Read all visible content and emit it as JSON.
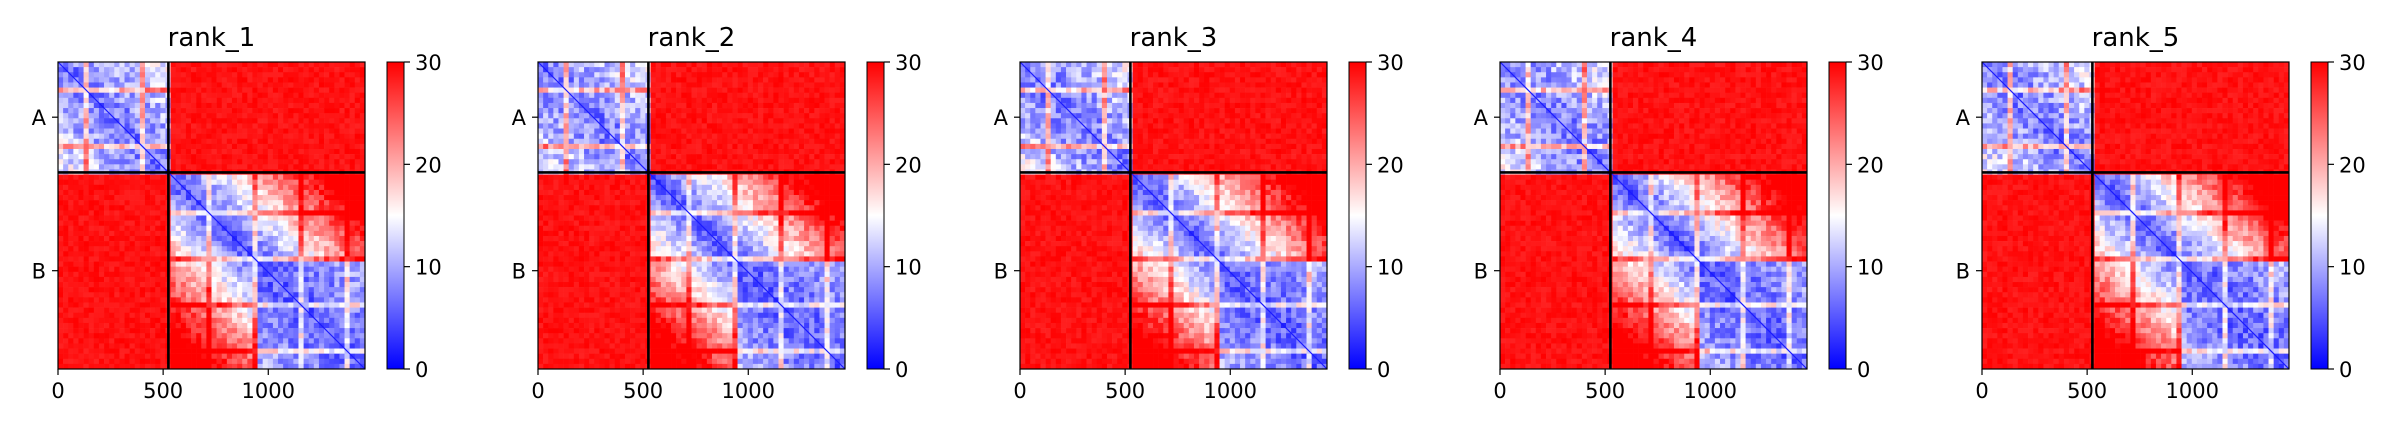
{
  "chart_data": [
    {
      "type": "heatmap",
      "title": "rank_1",
      "x_ticks": [
        0,
        500,
        1000
      ],
      "x_tick_labels": [
        "0",
        "500",
        "1000"
      ],
      "y_tick_labels": [
        "A",
        "B"
      ],
      "matrix_size": 1460,
      "chain_boundary": 525,
      "chains": [
        "A",
        "B"
      ],
      "colormap": "bwr",
      "vmin": 0,
      "vmax": 30,
      "colorbar_ticks": [
        0,
        10,
        20,
        30
      ],
      "colorbar_tick_labels": [
        "0",
        "10",
        "20",
        "30"
      ],
      "block_values": {
        "A-A": "low (blue)",
        "A-B": 30,
        "B-A": 30,
        "B-B": "mixed, low near diagonal"
      }
    },
    {
      "type": "heatmap",
      "title": "rank_2",
      "x_ticks": [
        0,
        500,
        1000
      ],
      "x_tick_labels": [
        "0",
        "500",
        "1000"
      ],
      "y_tick_labels": [
        "A",
        "B"
      ],
      "matrix_size": 1460,
      "chain_boundary": 525,
      "chains": [
        "A",
        "B"
      ],
      "colormap": "bwr",
      "vmin": 0,
      "vmax": 30,
      "colorbar_ticks": [
        0,
        10,
        20,
        30
      ],
      "colorbar_tick_labels": [
        "0",
        "10",
        "20",
        "30"
      ],
      "block_values": {
        "A-A": "low (blue)",
        "A-B": 30,
        "B-A": 30,
        "B-B": "mixed, low near diagonal"
      }
    },
    {
      "type": "heatmap",
      "title": "rank_3",
      "x_ticks": [
        0,
        500,
        1000
      ],
      "x_tick_labels": [
        "0",
        "500",
        "1000"
      ],
      "y_tick_labels": [
        "A",
        "B"
      ],
      "matrix_size": 1460,
      "chain_boundary": 525,
      "chains": [
        "A",
        "B"
      ],
      "colormap": "bwr",
      "vmin": 0,
      "vmax": 30,
      "colorbar_ticks": [
        0,
        10,
        20,
        30
      ],
      "colorbar_tick_labels": [
        "0",
        "10",
        "20",
        "30"
      ],
      "block_values": {
        "A-A": "low (blue)",
        "A-B": 30,
        "B-A": 30,
        "B-B": "mixed, low near diagonal"
      }
    },
    {
      "type": "heatmap",
      "title": "rank_4",
      "x_ticks": [
        0,
        500,
        1000
      ],
      "x_tick_labels": [
        "0",
        "500",
        "1000"
      ],
      "y_tick_labels": [
        "A",
        "B"
      ],
      "matrix_size": 1460,
      "chain_boundary": 525,
      "chains": [
        "A",
        "B"
      ],
      "colormap": "bwr",
      "vmin": 0,
      "vmax": 30,
      "colorbar_ticks": [
        0,
        10,
        20,
        30
      ],
      "colorbar_tick_labels": [
        "0",
        "10",
        "20",
        "30"
      ],
      "block_values": {
        "A-A": "low (blue)",
        "A-B": 30,
        "B-A": 30,
        "B-B": "mixed, low near diagonal"
      }
    },
    {
      "type": "heatmap",
      "title": "rank_5",
      "x_ticks": [
        0,
        500,
        1000
      ],
      "x_tick_labels": [
        "0",
        "500",
        "1000"
      ],
      "y_tick_labels": [
        "A",
        "B"
      ],
      "matrix_size": 1460,
      "chain_boundary": 525,
      "chains": [
        "A",
        "B"
      ],
      "colormap": "bwr",
      "vmin": 0,
      "vmax": 30,
      "colorbar_ticks": [
        0,
        10,
        20,
        30
      ],
      "colorbar_tick_labels": [
        "0",
        "10",
        "20",
        "30"
      ],
      "block_values": {
        "A-A": "low (blue)",
        "A-B": 30,
        "B-A": 30,
        "B-B": "mixed, low near diagonal"
      }
    }
  ]
}
